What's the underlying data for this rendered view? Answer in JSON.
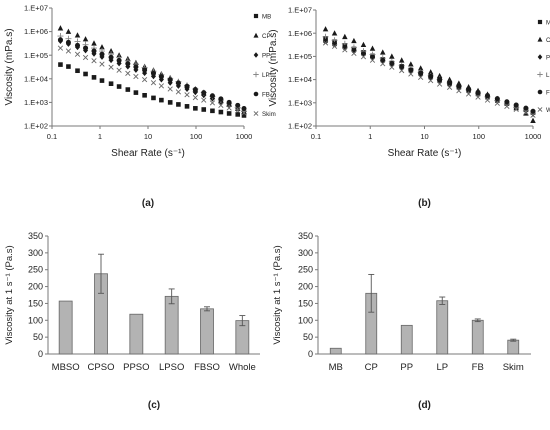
{
  "chart_data": [
    {
      "panel_label": "(a)",
      "type": "scatter",
      "xscale": "log",
      "yscale": "log",
      "xlim": [
        0.1,
        1000
      ],
      "ylim": [
        100,
        10000000
      ],
      "xticks": [
        0.1,
        1,
        10,
        100,
        1000
      ],
      "xtick_labels": [
        "0.1",
        "1",
        "10",
        "100",
        "1000"
      ],
      "yticks": [
        100,
        1000,
        10000,
        100000,
        1000000,
        10000000
      ],
      "ytick_labels": [
        "1.E+02",
        "1.E+03",
        "1.E+04",
        "1.E+05",
        "1.E+06",
        "1.E+07"
      ],
      "xlabel": "Shear Rate (s⁻¹)",
      "ylabel": "Viscosity (mPa.s)",
      "legend_position": "right",
      "series": [
        {
          "name": "MB",
          "marker": "square",
          "x": [
            0.15,
            0.22,
            0.34,
            0.5,
            0.75,
            1.1,
            1.7,
            2.5,
            3.8,
            5.6,
            8.5,
            13,
            19,
            29,
            43,
            65,
            97,
            145,
            220,
            330,
            490,
            740,
            1000
          ],
          "y": [
            40000,
            33000,
            22000,
            16000,
            11500,
            8400,
            6200,
            4700,
            3500,
            2600,
            2000,
            1550,
            1250,
            1000,
            820,
            680,
            560,
            500,
            440,
            390,
            340,
            310,
            280
          ]
        },
        {
          "name": "CP",
          "marker": "triangle",
          "x": [
            0.15,
            0.22,
            0.34,
            0.5,
            0.75,
            1.1,
            1.7,
            2.5,
            3.8,
            5.6,
            8.5,
            13,
            19,
            29,
            43,
            65,
            97,
            145,
            220,
            330,
            490,
            740,
            1000
          ],
          "y": [
            1400000,
            1000000,
            700000,
            480000,
            320000,
            220000,
            150000,
            100000,
            70000,
            48000,
            33000,
            23000,
            16000,
            11000,
            7500,
            5200,
            3600,
            2500,
            1700,
            1200,
            800,
            550,
            400
          ]
        },
        {
          "name": "PP",
          "marker": "diamond",
          "x": [
            0.15,
            0.22,
            0.34,
            0.5,
            0.75,
            1.1,
            1.7,
            2.5,
            3.8,
            5.6,
            8.5,
            13,
            19,
            29,
            43,
            65,
            97,
            145,
            220,
            330,
            490,
            740,
            1000
          ],
          "y": [
            400000,
            300000,
            220000,
            160000,
            115000,
            85000,
            62000,
            45000,
            33000,
            24000,
            17500,
            12800,
            9300,
            6800,
            5000,
            3700,
            2700,
            2000,
            1450,
            1050,
            760,
            550,
            400
          ]
        },
        {
          "name": "LP",
          "marker": "plus",
          "x": [
            0.15,
            0.22,
            0.34,
            0.5,
            0.75,
            1.1,
            1.7,
            2.5,
            3.8,
            5.6,
            8.5,
            13,
            19,
            29,
            43,
            65,
            97,
            145,
            220,
            330,
            490,
            740,
            1000
          ],
          "y": [
            650000,
            500000,
            380000,
            280000,
            200000,
            150000,
            110000,
            80000,
            58000,
            42000,
            30000,
            21000,
            15000,
            10500,
            7500,
            5300,
            3700,
            2600,
            1800,
            1250,
            870,
            600,
            420
          ]
        },
        {
          "name": "FB",
          "marker": "circle",
          "x": [
            0.15,
            0.22,
            0.34,
            0.5,
            0.75,
            1.1,
            1.7,
            2.5,
            3.8,
            5.6,
            8.5,
            13,
            19,
            29,
            43,
            65,
            97,
            145,
            220,
            330,
            490,
            740,
            1000
          ],
          "y": [
            450000,
            350000,
            260000,
            200000,
            150000,
            110000,
            82000,
            60000,
            44000,
            32000,
            23500,
            17000,
            12300,
            9000,
            6600,
            4800,
            3500,
            2600,
            1900,
            1400,
            1000,
            750,
            550
          ]
        },
        {
          "name": "Skim",
          "marker": "x",
          "x": [
            0.15,
            0.22,
            0.34,
            0.5,
            0.75,
            1.1,
            1.7,
            2.5,
            3.8,
            5.6,
            8.5,
            13,
            19,
            29,
            43,
            65,
            97,
            145,
            220,
            330,
            490,
            740,
            1000
          ],
          "y": [
            200000,
            150000,
            110000,
            80000,
            58000,
            42000,
            31000,
            23000,
            17000,
            12500,
            9200,
            6800,
            5000,
            3700,
            2800,
            2100,
            1600,
            1250,
            950,
            750,
            580,
            450,
            360
          ]
        }
      ]
    },
    {
      "panel_label": "(b)",
      "type": "scatter",
      "xscale": "log",
      "yscale": "log",
      "xlim": [
        0.1,
        1000
      ],
      "ylim": [
        100,
        10000000
      ],
      "xticks": [
        0.1,
        1,
        10,
        100,
        1000
      ],
      "xtick_labels": [
        "0.1",
        "1",
        "10",
        "100",
        "1000"
      ],
      "yticks": [
        100,
        1000,
        10000,
        100000,
        1000000,
        10000000
      ],
      "ytick_labels": [
        "1.E+02",
        "1.E+03",
        "1.E+04",
        "1.E+05",
        "1.E+06",
        "1.E+07"
      ],
      "xlabel": "Shear Rate (s⁻¹)",
      "ylabel": "Viscosity (mPa.s)",
      "legend_position": "right",
      "series": [
        {
          "name": "MBSO",
          "marker": "square",
          "x": [
            0.15,
            0.22,
            0.34,
            0.5,
            0.75,
            1.1,
            1.7,
            2.5,
            3.8,
            5.6,
            8.5,
            13,
            19,
            29,
            43,
            65,
            97,
            145,
            220,
            330,
            490,
            740,
            1000
          ],
          "y": [
            600000,
            430000,
            300000,
            210000,
            150000,
            105000,
            74000,
            52000,
            37000,
            26000,
            18500,
            13000,
            9300,
            6600,
            4700,
            3400,
            2400,
            1750,
            1250,
            920,
            680,
            500,
            380
          ]
        },
        {
          "name": "CPSO",
          "marker": "triangle",
          "x": [
            0.15,
            0.22,
            0.34,
            0.5,
            0.75,
            1.1,
            1.7,
            2.5,
            3.8,
            5.6,
            8.5,
            13,
            19,
            29,
            43,
            65,
            97,
            145,
            220,
            330,
            490,
            740,
            1000
          ],
          "y": [
            1500000,
            1000000,
            700000,
            470000,
            320000,
            220000,
            150000,
            100000,
            68000,
            46000,
            31000,
            21000,
            14500,
            10000,
            6900,
            4800,
            3300,
            2300,
            1500,
            1000,
            600,
            350,
            170
          ]
        },
        {
          "name": "PPSO",
          "marker": "diamond",
          "x": [
            0.15,
            0.22,
            0.34,
            0.5,
            0.75,
            1.1,
            1.7,
            2.5,
            3.8,
            5.6,
            8.5,
            13,
            19,
            29,
            43,
            65,
            97,
            145,
            220,
            330,
            490,
            740,
            1000
          ],
          "y": [
            500000,
            360000,
            260000,
            185000,
            132000,
            94000,
            67000,
            48000,
            34000,
            24500,
            17500,
            12500,
            9000,
            6400,
            4600,
            3300,
            2400,
            1700,
            1250,
            900,
            650,
            480,
            350
          ]
        },
        {
          "name": "LPSO",
          "marker": "plus",
          "x": [
            0.15,
            0.22,
            0.34,
            0.5,
            0.75,
            1.1,
            1.7,
            2.5,
            3.8,
            5.6,
            8.5,
            13,
            19,
            29,
            43,
            65,
            97,
            145,
            220,
            330,
            490,
            740,
            1000
          ],
          "y": [
            700000,
            500000,
            350000,
            245000,
            170000,
            120000,
            84000,
            59000,
            41000,
            29000,
            20500,
            14500,
            10200,
            7200,
            5100,
            3600,
            2550,
            1800,
            1270,
            900,
            640,
            450,
            330
          ]
        },
        {
          "name": "FBSO",
          "marker": "circle",
          "x": [
            0.15,
            0.22,
            0.34,
            0.5,
            0.75,
            1.1,
            1.7,
            2.5,
            3.8,
            5.6,
            8.5,
            13,
            19,
            29,
            43,
            65,
            97,
            145,
            220,
            330,
            490,
            740,
            1000
          ],
          "y": [
            450000,
            330000,
            240000,
            175000,
            127000,
            92000,
            67000,
            49000,
            35500,
            26000,
            19000,
            13800,
            10000,
            7300,
            5300,
            3900,
            2800,
            2050,
            1500,
            1100,
            800,
            590,
            430
          ]
        },
        {
          "name": "Whole",
          "marker": "x",
          "x": [
            0.15,
            0.22,
            0.34,
            0.5,
            0.75,
            1.1,
            1.7,
            2.5,
            3.8,
            5.6,
            8.5,
            13,
            19,
            29,
            43,
            65,
            97,
            145,
            220,
            330,
            490,
            740,
            1000
          ],
          "y": [
            380000,
            270000,
            190000,
            135000,
            96000,
            68000,
            48000,
            34000,
            24500,
            17500,
            12500,
            9000,
            6400,
            4600,
            3300,
            2400,
            1750,
            1300,
            950,
            700,
            520,
            390,
            290
          ]
        }
      ]
    },
    {
      "panel_label": "(c)",
      "type": "bar",
      "categories": [
        "MBSO",
        "CPSO",
        "PPSO",
        "LPSO",
        "FBSO",
        "Whole"
      ],
      "values": [
        157,
        238,
        118,
        171,
        134,
        99
      ],
      "errors": [
        0,
        58,
        0,
        22,
        6,
        15
      ],
      "ylim": [
        0,
        350
      ],
      "yticks": [
        0,
        50,
        100,
        150,
        200,
        250,
        300,
        350
      ],
      "ytick_labels": [
        "0",
        "50",
        "100",
        "150",
        "200",
        "250",
        "300",
        "350"
      ],
      "xlabel": "",
      "ylabel": "Viscosity at 1 s⁻¹ (Pa.s)"
    },
    {
      "panel_label": "(d)",
      "type": "bar",
      "categories": [
        "MB",
        "CP",
        "PP",
        "LP",
        "FB",
        "Skim"
      ],
      "values": [
        17,
        180,
        85,
        158,
        100,
        41
      ],
      "errors": [
        0,
        56,
        0,
        11,
        4,
        3
      ],
      "ylim": [
        0,
        350
      ],
      "yticks": [
        0,
        50,
        100,
        150,
        200,
        250,
        300,
        350
      ],
      "ytick_labels": [
        "0",
        "50",
        "100",
        "150",
        "200",
        "250",
        "300",
        "350"
      ],
      "xlabel": "",
      "ylabel": "Viscosity at 1 s⁻¹ (Pa.s)"
    }
  ]
}
